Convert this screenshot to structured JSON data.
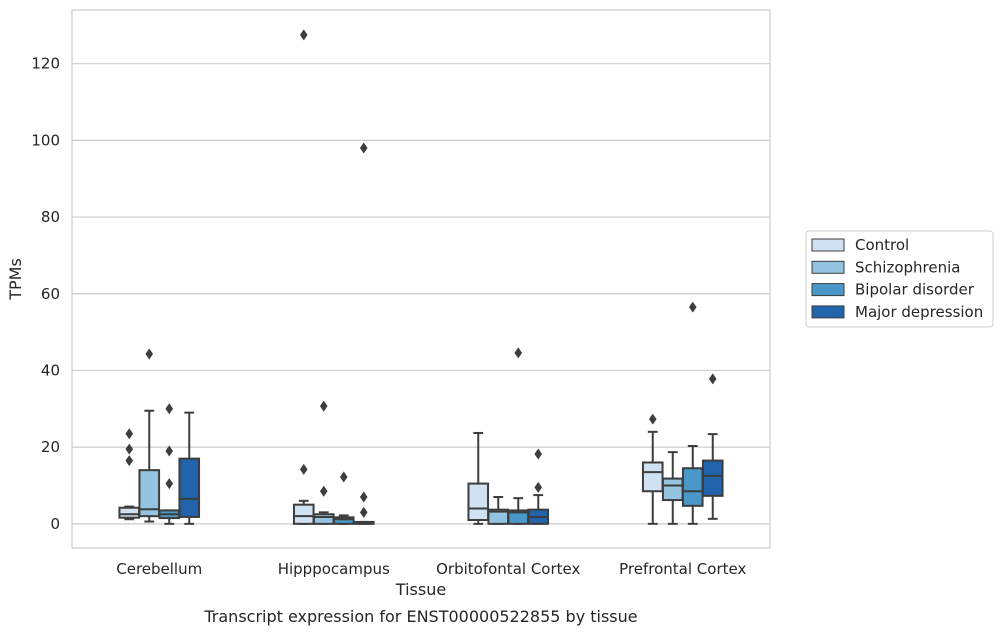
{
  "caption": "Transcript expression for ENST00000522855 by tissue",
  "chart_data": {
    "type": "box",
    "xlabel": "Tissue",
    "ylabel": "TPMs",
    "ylim": [
      -6.3,
      134
    ],
    "yticks": [
      0,
      20,
      40,
      60,
      80,
      100,
      120
    ],
    "grid": "horizontal",
    "legend_placement": "center-right",
    "categories": [
      "Cerebellum",
      "Hipppocampus",
      "Orbitofontal Cortex",
      "Prefrontal Cortex"
    ],
    "series": [
      {
        "name": "Control",
        "color": "#d0e1f2",
        "boxes": [
          {
            "whislo": 1.2,
            "q1": 1.6,
            "med": 2.5,
            "q3": 4.2,
            "whishi": 4.5,
            "fliers": [
              16.5,
              19.5,
              23.5
            ]
          },
          {
            "whislo": 0,
            "q1": 0,
            "med": 2.0,
            "q3": 5.0,
            "whishi": 6.0,
            "fliers": [
              14.2,
              127.5
            ]
          },
          {
            "whislo": 0,
            "q1": 1.0,
            "med": 4.0,
            "q3": 10.5,
            "whishi": 23.7,
            "fliers": []
          },
          {
            "whislo": 0,
            "q1": 8.5,
            "med": 13.5,
            "q3": 16.0,
            "whishi": 24.0,
            "fliers": [
              27.3
            ]
          }
        ]
      },
      {
        "name": "Schizophrenia",
        "color": "#94c4df",
        "boxes": [
          {
            "whislo": 0.6,
            "q1": 2.0,
            "med": 3.8,
            "q3": 14.0,
            "whishi": 29.5,
            "fliers": [
              44.3
            ]
          },
          {
            "whislo": 0,
            "q1": 0,
            "med": 1.8,
            "q3": 2.5,
            "whishi": 3.0,
            "fliers": [
              8.5,
              30.7
            ]
          },
          {
            "whislo": 0,
            "q1": 0,
            "med": 3.2,
            "q3": 3.7,
            "whishi": 7.0,
            "fliers": []
          },
          {
            "whislo": 0,
            "q1": 6.2,
            "med": 10.0,
            "q3": 11.8,
            "whishi": 18.7,
            "fliers": []
          }
        ]
      },
      {
        "name": "Bipolar disorder",
        "color": "#4a98c9",
        "boxes": [
          {
            "whislo": 0,
            "q1": 1.5,
            "med": 2.5,
            "q3": 3.5,
            "whishi": 3.5,
            "fliers": [
              10.5,
              19.0,
              30.0
            ]
          },
          {
            "whislo": 0,
            "q1": 0,
            "med": 1.2,
            "q3": 1.7,
            "whishi": 2.2,
            "fliers": [
              12.2
            ]
          },
          {
            "whislo": 0,
            "q1": 0,
            "med": 3.0,
            "q3": 3.5,
            "whishi": 6.7,
            "fliers": [
              44.6
            ]
          },
          {
            "whislo": 0,
            "q1": 4.7,
            "med": 8.5,
            "q3": 14.5,
            "whishi": 20.3,
            "fliers": [
              56.5
            ]
          }
        ]
      },
      {
        "name": "Major depression",
        "color": "#2164ab",
        "boxes": [
          {
            "whislo": 0,
            "q1": 1.8,
            "med": 6.5,
            "q3": 17.0,
            "whishi": 29.0,
            "fliers": []
          },
          {
            "whislo": 0,
            "q1": 0,
            "med": 0.2,
            "q3": 0.5,
            "whishi": 0.5,
            "fliers": [
              3.0,
              7.0,
              98.0
            ]
          },
          {
            "whislo": 0,
            "q1": 0,
            "med": 1.8,
            "q3": 3.7,
            "whishi": 7.5,
            "fliers": [
              9.5,
              18.2
            ]
          },
          {
            "whislo": 1.3,
            "q1": 7.3,
            "med": 12.5,
            "q3": 16.5,
            "whishi": 23.4,
            "fliers": [
              37.8
            ]
          }
        ]
      }
    ]
  }
}
